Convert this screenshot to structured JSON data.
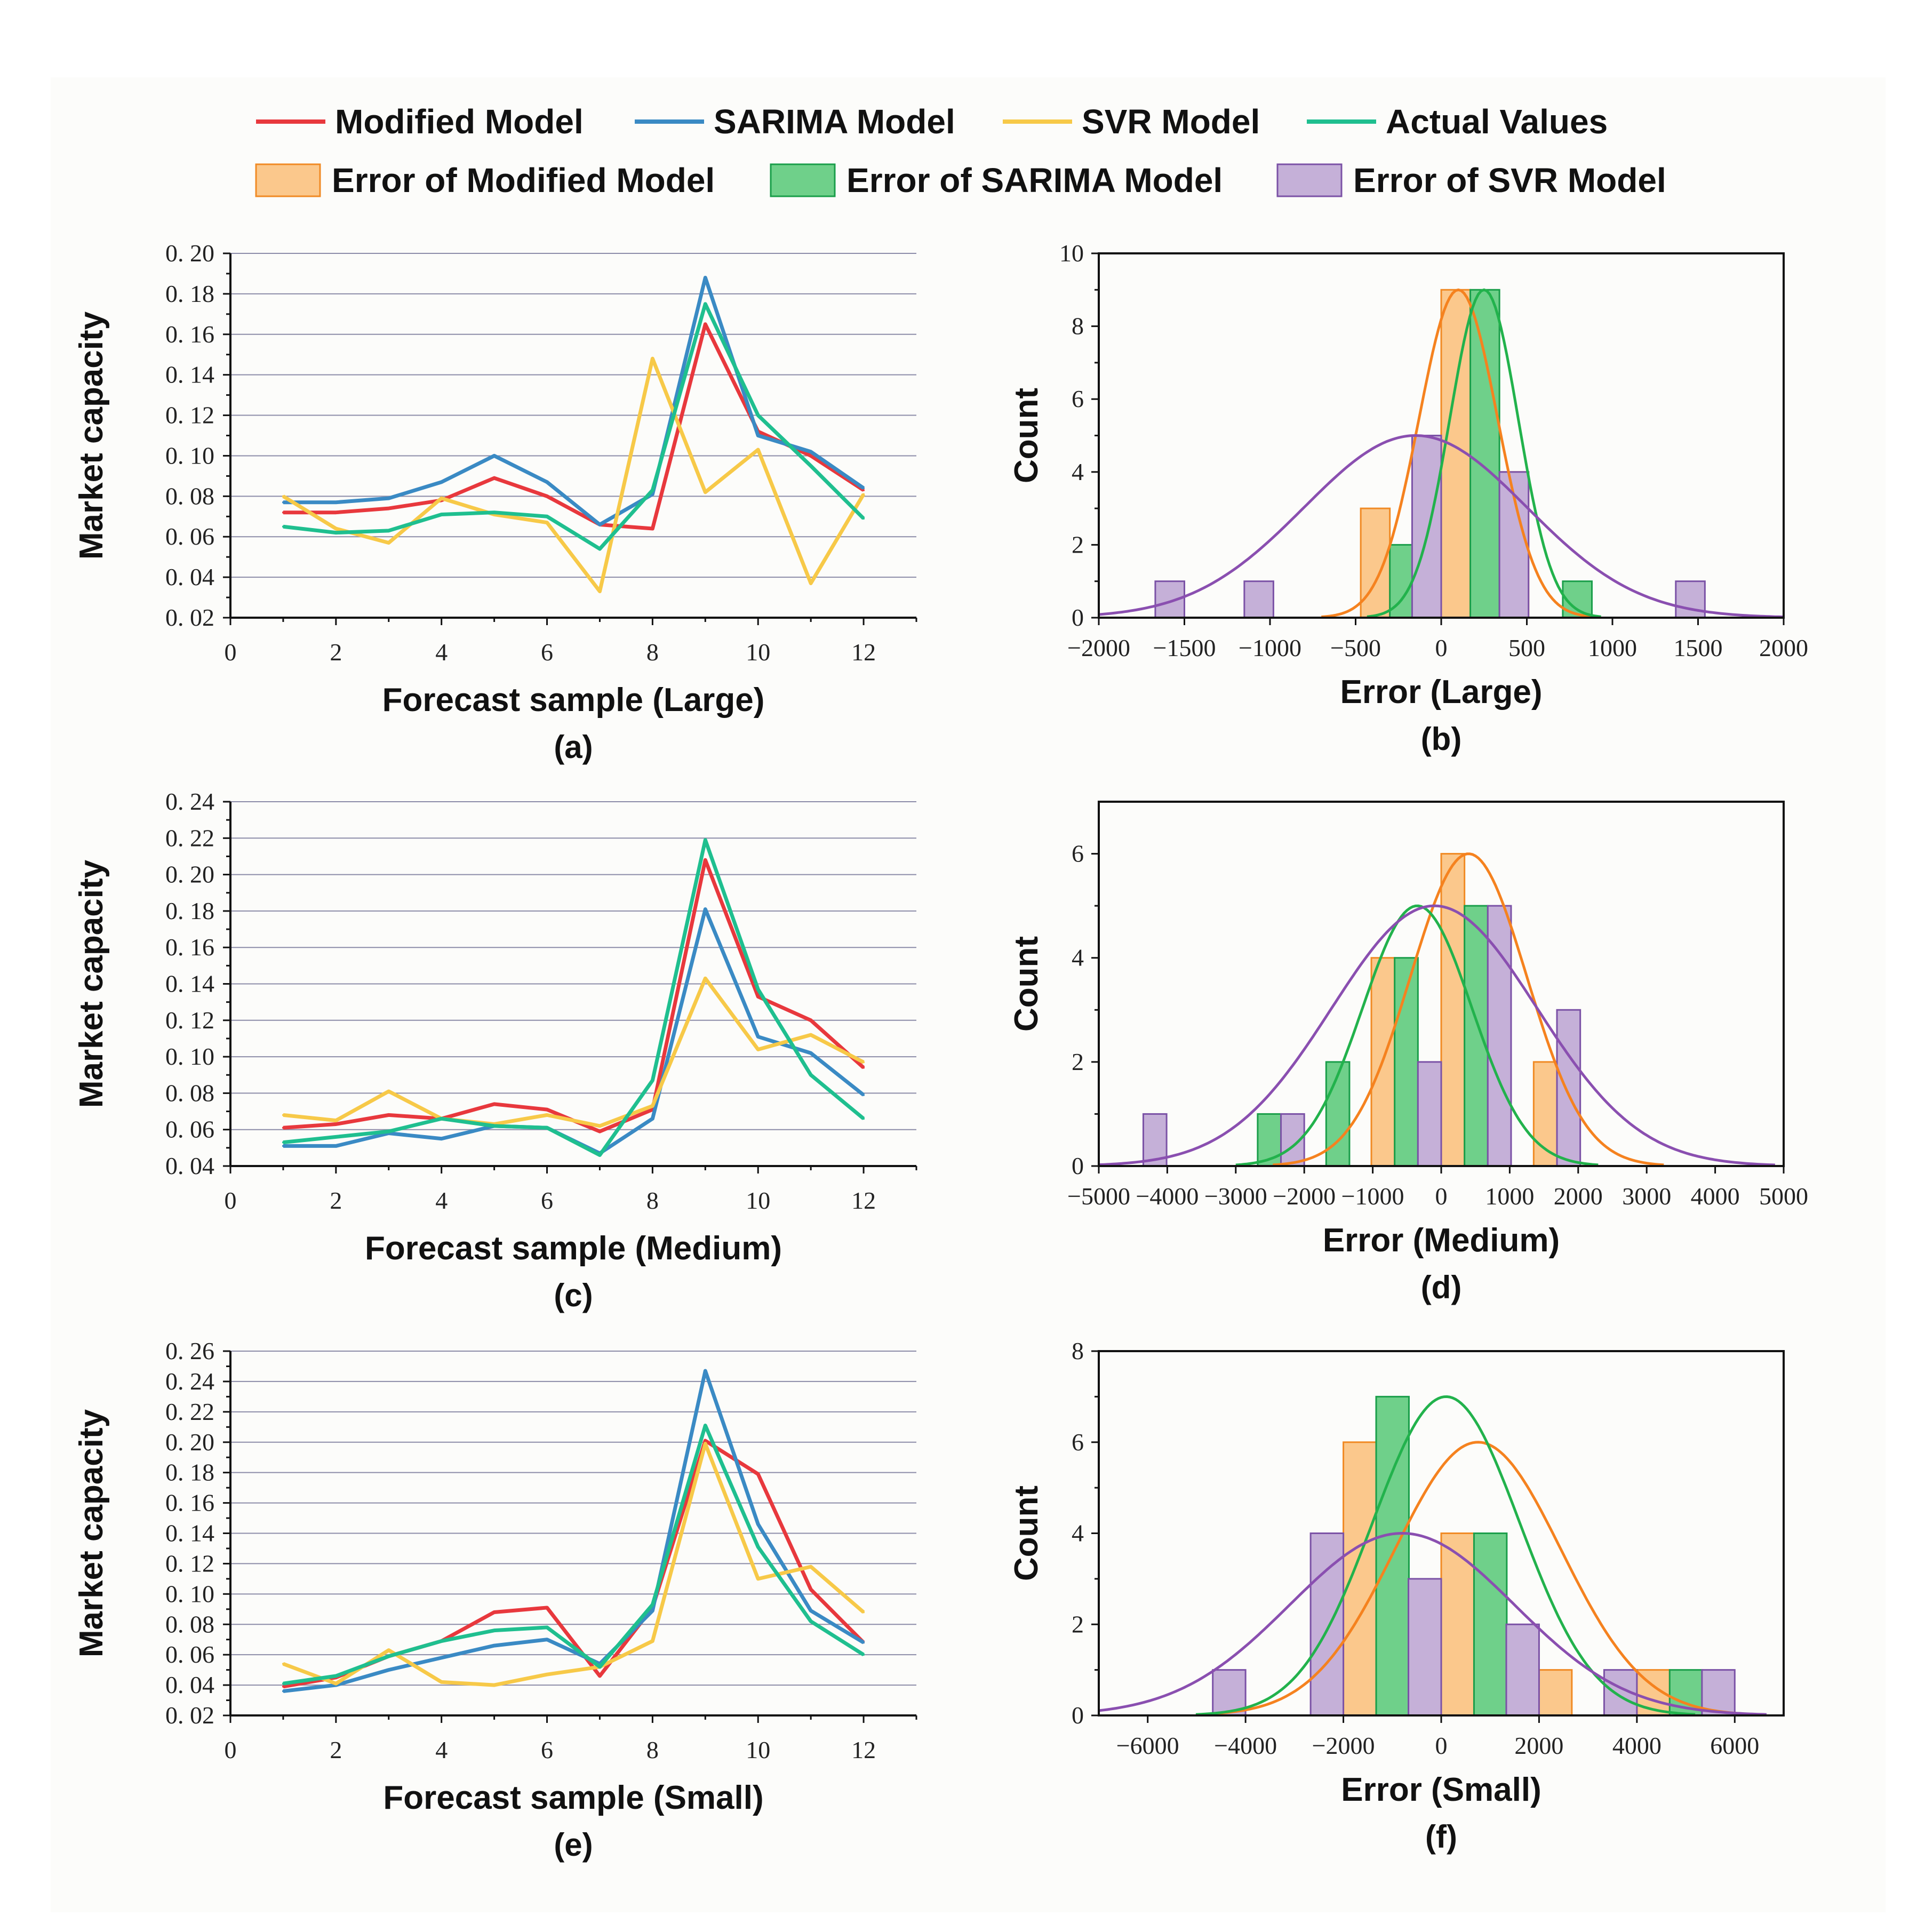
{
  "colors": {
    "modified": "#e8383d",
    "sarima": "#3a8ac4",
    "svr": "#f7c948",
    "actual": "#1fbf8f",
    "err_modified_fill": "#fbc88c",
    "err_modified_edge": "#f08a24",
    "err_modified_curve": "#f5821f",
    "err_sarima_fill": "#6fd08a",
    "err_sarima_edge": "#1a9e4a",
    "err_sarima_curve": "#22b24c",
    "err_svr_fill": "#c5b0d8",
    "err_svr_edge": "#7b52a6",
    "err_svr_curve": "#8a4fb0",
    "grid": "#8c8ca8"
  },
  "legend": {
    "lines": [
      {
        "label": "Modified Model",
        "color_key": "modified"
      },
      {
        "label": "SARIMA Model",
        "color_key": "sarima"
      },
      {
        "label": "SVR Model",
        "color_key": "svr"
      },
      {
        "label": "Actual Values",
        "color_key": "actual"
      }
    ],
    "boxes": [
      {
        "label": "Error of Modified Model",
        "fill_key": "err_modified_fill",
        "edge_key": "err_modified_edge"
      },
      {
        "label": "Error of SARIMA Model",
        "fill_key": "err_sarima_fill",
        "edge_key": "err_sarima_edge"
      },
      {
        "label": "Error of SVR Model",
        "fill_key": "err_svr_fill",
        "edge_key": "err_svr_edge"
      }
    ]
  },
  "chart_data": [
    {
      "id": "a",
      "type": "line",
      "panel_label": "(a)",
      "xlabel": "Forecast sample (Large)",
      "ylabel": "Market capacity",
      "xlim": [
        0,
        13
      ],
      "ylim": [
        0.02,
        0.2
      ],
      "xticks": [
        0,
        2,
        4,
        6,
        8,
        10,
        12
      ],
      "xtick_labels": [
        "0",
        "2",
        "4",
        "6",
        "8",
        "10",
        "12"
      ],
      "yticks": [
        0.02,
        0.04,
        0.06,
        0.08,
        0.1,
        0.12,
        0.14,
        0.16,
        0.18,
        0.2
      ],
      "ytick_labels": [
        "0. 02",
        "0. 04",
        "0. 06",
        "0. 08",
        "0. 10",
        "0. 12",
        "0. 14",
        "0. 16",
        "0. 18",
        "0. 20"
      ],
      "x": [
        1,
        2,
        3,
        4,
        5,
        6,
        7,
        8,
        9,
        10,
        11,
        12
      ],
      "series": [
        {
          "name": "Modified Model",
          "color_key": "modified",
          "values": [
            0.072,
            0.072,
            0.074,
            0.078,
            0.089,
            0.08,
            0.066,
            0.064,
            0.165,
            0.112,
            0.1,
            0.083
          ]
        },
        {
          "name": "SARIMA Model",
          "color_key": "sarima",
          "values": [
            0.077,
            0.077,
            0.079,
            0.087,
            0.1,
            0.087,
            0.066,
            0.081,
            0.188,
            0.11,
            0.102,
            0.084
          ]
        },
        {
          "name": "SVR Model",
          "color_key": "svr",
          "values": [
            0.08,
            0.064,
            0.057,
            0.079,
            0.071,
            0.067,
            0.033,
            0.148,
            0.082,
            0.103,
            0.037,
            0.081
          ]
        },
        {
          "name": "Actual Values",
          "color_key": "actual",
          "values": [
            0.065,
            0.062,
            0.063,
            0.071,
            0.072,
            0.07,
            0.054,
            0.083,
            0.175,
            0.12,
            0.095,
            0.069
          ]
        }
      ]
    },
    {
      "id": "b",
      "type": "histogram",
      "panel_label": "(b)",
      "xlabel": "Error (Large)",
      "ylabel": "Count",
      "xlim": [
        -2000,
        2000
      ],
      "ylim": [
        0,
        10
      ],
      "xticks": [
        -2000,
        -1500,
        -1000,
        -500,
        0,
        500,
        1000,
        1500,
        2000
      ],
      "xtick_labels": [
        "−2000",
        "−1500",
        "−1000",
        "−500",
        "0",
        "500",
        "1000",
        "1500",
        "2000"
      ],
      "yticks": [
        0,
        2,
        4,
        6,
        8,
        10
      ],
      "ytick_labels": [
        "0",
        "2",
        "4",
        "6",
        "8",
        "10"
      ],
      "bin_width": 170,
      "series": [
        {
          "name": "Error of Modified Model",
          "fill_key": "err_modified_fill",
          "edge_key": "err_modified_edge",
          "curve_key": "err_modified_curve",
          "bins": [
            [
              -470,
              3
            ],
            [
              0,
              9
            ],
            [
              340,
              4
            ]
          ],
          "fit": {
            "mean": 100,
            "sd": 230,
            "peak": 9
          }
        },
        {
          "name": "Error of SARIMA Model",
          "fill_key": "err_sarima_fill",
          "edge_key": "err_sarima_edge",
          "curve_key": "err_sarima_curve",
          "bins": [
            [
              -300,
              2
            ],
            [
              170,
              9
            ],
            [
              710,
              1
            ]
          ],
          "fit": {
            "mean": 250,
            "sd": 200,
            "peak": 9
          }
        },
        {
          "name": "Error of SVR Model",
          "fill_key": "err_svr_fill",
          "edge_key": "err_svr_edge",
          "curve_key": "err_svr_curve",
          "bins": [
            [
              -1670,
              1
            ],
            [
              -1150,
              1
            ],
            [
              -170,
              5
            ],
            [
              340,
              4
            ],
            [
              1370,
              1
            ]
          ],
          "fit": {
            "mean": -150,
            "sd": 650,
            "peak": 5
          }
        }
      ]
    },
    {
      "id": "c",
      "type": "line",
      "panel_label": "(c)",
      "xlabel": "Forecast sample (Medium)",
      "ylabel": "Market capacity",
      "xlim": [
        0,
        13
      ],
      "ylim": [
        0.04,
        0.24
      ],
      "xticks": [
        0,
        2,
        4,
        6,
        8,
        10,
        12
      ],
      "xtick_labels": [
        "0",
        "2",
        "4",
        "6",
        "8",
        "10",
        "12"
      ],
      "yticks": [
        0.04,
        0.06,
        0.08,
        0.1,
        0.12,
        0.14,
        0.16,
        0.18,
        0.2,
        0.22,
        0.24
      ],
      "ytick_labels": [
        "0. 04",
        "0. 06",
        "0. 08",
        "0. 10",
        "0. 12",
        "0. 14",
        "0. 16",
        "0. 18",
        "0. 20",
        "0. 22",
        "0. 24"
      ],
      "x": [
        1,
        2,
        3,
        4,
        5,
        6,
        7,
        8,
        9,
        10,
        11,
        12
      ],
      "series": [
        {
          "name": "Modified Model",
          "color_key": "modified",
          "values": [
            0.061,
            0.063,
            0.068,
            0.066,
            0.074,
            0.071,
            0.059,
            0.071,
            0.208,
            0.133,
            0.12,
            0.094
          ]
        },
        {
          "name": "SARIMA Model",
          "color_key": "sarima",
          "values": [
            0.051,
            0.051,
            0.058,
            0.055,
            0.062,
            0.061,
            0.047,
            0.066,
            0.181,
            0.111,
            0.102,
            0.079
          ]
        },
        {
          "name": "SVR Model",
          "color_key": "svr",
          "values": [
            0.068,
            0.065,
            0.081,
            0.066,
            0.063,
            0.068,
            0.062,
            0.073,
            0.143,
            0.104,
            0.112,
            0.097
          ]
        },
        {
          "name": "Actual Values",
          "color_key": "actual",
          "values": [
            0.053,
            0.056,
            0.059,
            0.066,
            0.062,
            0.061,
            0.046,
            0.087,
            0.219,
            0.137,
            0.09,
            0.066
          ]
        }
      ]
    },
    {
      "id": "d",
      "type": "histogram",
      "panel_label": "(d)",
      "xlabel": "Error (Medium)",
      "ylabel": "Count",
      "xlim": [
        -5000,
        5000
      ],
      "ylim": [
        0,
        7
      ],
      "xticks": [
        -5000,
        -4000,
        -3000,
        -2000,
        -1000,
        0,
        1000,
        2000,
        3000,
        4000,
        5000
      ],
      "xtick_labels": [
        "−5000",
        "−4000",
        "−3000",
        "−2000",
        "−1000",
        "0",
        "1000",
        "2000",
        "3000",
        "4000",
        "5000"
      ],
      "yticks": [
        0,
        2,
        4,
        6
      ],
      "ytick_labels": [
        "0",
        "2",
        "4",
        "6"
      ],
      "bin_width": 340,
      "series": [
        {
          "name": "Error of Modified Model",
          "fill_key": "err_modified_fill",
          "edge_key": "err_modified_edge",
          "curve_key": "err_modified_curve",
          "bins": [
            [
              -1020,
              4
            ],
            [
              0,
              6
            ],
            [
              1350,
              2
            ]
          ],
          "fit": {
            "mean": 400,
            "sd": 850,
            "peak": 6
          }
        },
        {
          "name": "Error of SARIMA Model",
          "fill_key": "err_sarima_fill",
          "edge_key": "err_sarima_edge",
          "curve_key": "err_sarima_curve",
          "bins": [
            [
              -2680,
              1
            ],
            [
              -1680,
              2
            ],
            [
              -680,
              4
            ],
            [
              340,
              5
            ]
          ],
          "fit": {
            "mean": -350,
            "sd": 800,
            "peak": 5
          }
        },
        {
          "name": "Error of SVR Model",
          "fill_key": "err_svr_fill",
          "edge_key": "err_svr_edge",
          "curve_key": "err_svr_curve",
          "bins": [
            [
              -4350,
              1
            ],
            [
              -2340,
              1
            ],
            [
              -340,
              2
            ],
            [
              680,
              5
            ],
            [
              1690,
              3
            ]
          ],
          "fit": {
            "mean": -100,
            "sd": 1500,
            "peak": 5
          }
        }
      ]
    },
    {
      "id": "e",
      "type": "line",
      "panel_label": "(e)",
      "xlabel": "Forecast sample (Small)",
      "ylabel": "Market capacity",
      "xlim": [
        0,
        13
      ],
      "ylim": [
        0.02,
        0.26
      ],
      "xticks": [
        0,
        2,
        4,
        6,
        8,
        10,
        12
      ],
      "xtick_labels": [
        "0",
        "2",
        "4",
        "6",
        "8",
        "10",
        "12"
      ],
      "yticks": [
        0.02,
        0.04,
        0.06,
        0.08,
        0.1,
        0.12,
        0.14,
        0.16,
        0.18,
        0.2,
        0.22,
        0.24,
        0.26
      ],
      "ytick_labels": [
        "0. 02",
        "0. 04",
        "0. 06",
        "0. 08",
        "0. 10",
        "0. 12",
        "0. 14",
        "0. 16",
        "0. 18",
        "0. 20",
        "0. 22",
        "0. 24",
        "0. 26"
      ],
      "x": [
        1,
        2,
        3,
        4,
        5,
        6,
        7,
        8,
        9,
        10,
        11,
        12
      ],
      "series": [
        {
          "name": "Modified Model",
          "color_key": "modified",
          "values": [
            0.039,
            0.045,
            0.059,
            0.069,
            0.088,
            0.091,
            0.046,
            0.091,
            0.201,
            0.179,
            0.103,
            0.068
          ]
        },
        {
          "name": "SARIMA Model",
          "color_key": "sarima",
          "values": [
            0.036,
            0.04,
            0.05,
            0.058,
            0.066,
            0.07,
            0.054,
            0.089,
            0.247,
            0.146,
            0.089,
            0.068
          ]
        },
        {
          "name": "SVR Model",
          "color_key": "svr",
          "values": [
            0.054,
            0.041,
            0.063,
            0.042,
            0.04,
            0.047,
            0.052,
            0.069,
            0.199,
            0.11,
            0.118,
            0.088
          ]
        },
        {
          "name": "Actual Values",
          "color_key": "actual",
          "values": [
            0.041,
            0.046,
            0.059,
            0.069,
            0.076,
            0.078,
            0.052,
            0.093,
            0.211,
            0.131,
            0.082,
            0.06
          ]
        }
      ]
    },
    {
      "id": "f",
      "type": "histogram",
      "panel_label": "(f)",
      "xlabel": "Error (Small)",
      "ylabel": "Count",
      "xlim": [
        -7000,
        7000
      ],
      "ylim": [
        0,
        8
      ],
      "xticks": [
        -6000,
        -4000,
        -2000,
        0,
        2000,
        4000,
        6000
      ],
      "xtick_labels": [
        "−6000",
        "−4000",
        "−2000",
        "0",
        "2000",
        "4000",
        "6000"
      ],
      "yticks": [
        0,
        2,
        4,
        6,
        8
      ],
      "ytick_labels": [
        "0",
        "2",
        "4",
        "6",
        "8"
      ],
      "bin_width": 670,
      "series": [
        {
          "name": "Error of Modified Model",
          "fill_key": "err_modified_fill",
          "edge_key": "err_modified_edge",
          "curve_key": "err_modified_curve",
          "bins": [
            [
              -2000,
              6
            ],
            [
              0,
              4
            ],
            [
              2000,
              1
            ],
            [
              4000,
              1
            ]
          ],
          "fit": {
            "mean": 750,
            "sd": 1700,
            "peak": 6
          }
        },
        {
          "name": "Error of SARIMA Model",
          "fill_key": "err_sarima_fill",
          "edge_key": "err_sarima_edge",
          "curve_key": "err_sarima_curve",
          "bins": [
            [
              -1330,
              7
            ],
            [
              670,
              4
            ],
            [
              4670,
              1
            ]
          ],
          "fit": {
            "mean": 100,
            "sd": 1500,
            "peak": 7
          }
        },
        {
          "name": "Error of SVR Model",
          "fill_key": "err_svr_fill",
          "edge_key": "err_svr_edge",
          "curve_key": "err_svr_curve",
          "bins": [
            [
              -4670,
              1
            ],
            [
              -2670,
              4
            ],
            [
              -670,
              3
            ],
            [
              1330,
              2
            ],
            [
              3330,
              1
            ],
            [
              5330,
              1
            ]
          ],
          "fit": {
            "mean": -800,
            "sd": 2300,
            "peak": 4
          }
        }
      ]
    }
  ]
}
